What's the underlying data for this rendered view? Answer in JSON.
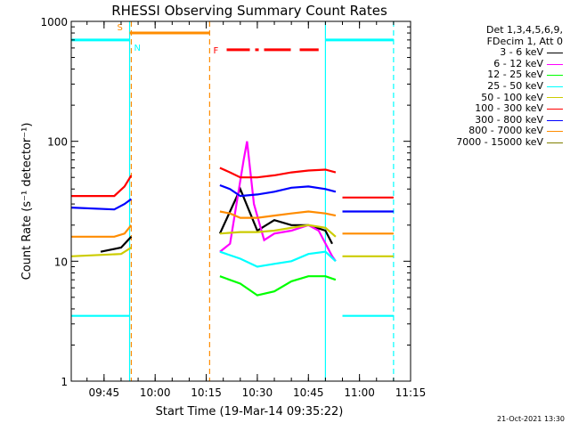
{
  "chart_data": {
    "type": "line",
    "title": "RHESSI Observing Summary Count Rates",
    "xlabel": "Start Time (19-Mar-14 09:35:22)",
    "ylabel": "Count Rate (s⁻¹ detector⁻¹)",
    "y_scale": "log",
    "ylim": [
      1,
      1000
    ],
    "xlim": [
      "09:35:22",
      "11:15"
    ],
    "x_ticks": [
      "09:45",
      "10:00",
      "10:15",
      "10:30",
      "10:45",
      "11:00",
      "11:15"
    ],
    "y_ticks": [
      "1",
      "10",
      "100",
      "1000"
    ],
    "legend_position": "top-right",
    "legend_header": [
      "Det 1,3,4,5,6,9,",
      "FDecim 1, Att 0"
    ],
    "series": [
      {
        "name": "3 - 6 keV",
        "color": "#000000",
        "segments": [
          {
            "x": [
              "09:44",
              "09:50",
              "09:53"
            ],
            "y": [
              12,
              13,
              16
            ]
          },
          {
            "x": [
              "10:19",
              "10:25",
              "10:30",
              "10:35",
              "10:40",
              "10:45",
              "10:50",
              "10:52"
            ],
            "y": [
              17,
              40,
              18,
              22,
              20,
              20,
              18,
              14
            ]
          }
        ]
      },
      {
        "name": "6 - 12 keV",
        "color": "#ff00ff",
        "segments": [
          {
            "x": [
              "10:19",
              "10:22",
              "10:26",
              "10:27",
              "10:29",
              "10:32",
              "10:35",
              "10:40",
              "10:45",
              "10:48",
              "10:52",
              "10:53"
            ],
            "y": [
              12,
              14,
              70,
              100,
              30,
              15,
              17,
              18,
              20,
              18,
              11,
              10
            ]
          }
        ]
      },
      {
        "name": "12 - 25 keV",
        "color": "#00ff00",
        "segments": [
          {
            "x": [
              "10:19",
              "10:25",
              "10:30",
              "10:35",
              "10:40",
              "10:45",
              "10:50",
              "10:53"
            ],
            "y": [
              7.5,
              6.5,
              5.2,
              5.6,
              6.8,
              7.5,
              7.5,
              7.0
            ]
          }
        ]
      },
      {
        "name": "25 - 50 keV",
        "color": "#00ffff",
        "segments": [
          {
            "x": [
              "09:35:22",
              "09:52:30"
            ],
            "y": [
              3.5,
              3.5
            ]
          },
          {
            "x": [
              "10:19",
              "10:25",
              "10:30",
              "10:35",
              "10:40",
              "10:45",
              "10:50",
              "10:53"
            ],
            "y": [
              12,
              10.5,
              9,
              9.5,
              10,
              11.5,
              12,
              10
            ]
          },
          {
            "x": [
              "10:55",
              "11:10"
            ],
            "y": [
              3.5,
              3.5
            ]
          }
        ]
      },
      {
        "name": "50 - 100 keV",
        "color": "#cccc00",
        "segments": [
          {
            "x": [
              "09:35:22",
              "09:50",
              "09:53"
            ],
            "y": [
              11,
              11.5,
              13
            ]
          },
          {
            "x": [
              "10:19",
              "10:25",
              "10:30",
              "10:35",
              "10:40",
              "10:45",
              "10:50",
              "10:53"
            ],
            "y": [
              17,
              17.5,
              17.5,
              18,
              19,
              20,
              19,
              16
            ]
          },
          {
            "x": [
              "10:55",
              "11:10"
            ],
            "y": [
              11,
              11
            ]
          }
        ]
      },
      {
        "name": "100 - 300 keV",
        "color": "#ff0000",
        "segments": [
          {
            "x": [
              "09:35:22",
              "09:48",
              "09:51",
              "09:53"
            ],
            "y": [
              35,
              35,
              42,
              52
            ]
          },
          {
            "x": [
              "10:19",
              "10:22",
              "10:25",
              "10:30",
              "10:35",
              "10:40",
              "10:45",
              "10:50",
              "10:53"
            ],
            "y": [
              60,
              55,
              50,
              50,
              52,
              55,
              57,
              58,
              55
            ]
          },
          {
            "x": [
              "10:55",
              "11:10"
            ],
            "y": [
              34,
              34
            ]
          }
        ]
      },
      {
        "name": "300 - 800 keV",
        "color": "#0000ff",
        "segments": [
          {
            "x": [
              "09:35:22",
              "09:48",
              "09:51",
              "09:53"
            ],
            "y": [
              28,
              27,
              30,
              33
            ]
          },
          {
            "x": [
              "10:19",
              "10:22",
              "10:25",
              "10:30",
              "10:35",
              "10:40",
              "10:45",
              "10:50",
              "10:53"
            ],
            "y": [
              43,
              40,
              35,
              36,
              38,
              41,
              42,
              40,
              38
            ]
          },
          {
            "x": [
              "10:55",
              "11:10"
            ],
            "y": [
              26,
              26
            ]
          }
        ]
      },
      {
        "name": "800 - 7000 keV",
        "color": "#ff8c00",
        "segments": [
          {
            "x": [
              "09:35:22",
              "09:48",
              "09:51",
              "09:53"
            ],
            "y": [
              16,
              16,
              17,
              20
            ]
          },
          {
            "x": [
              "10:19",
              "10:22",
              "10:25",
              "10:30",
              "10:35",
              "10:40",
              "10:45",
              "10:50",
              "10:53"
            ],
            "y": [
              26,
              25,
              23,
              23,
              24,
              25,
              26,
              25,
              24
            ]
          },
          {
            "x": [
              "10:55",
              "11:10"
            ],
            "y": [
              17,
              17
            ]
          }
        ]
      },
      {
        "name": "7000 - 15000 keV",
        "color": "#808000",
        "segments": []
      }
    ],
    "flags": [
      {
        "label": "S",
        "color": "#ff8c00",
        "y": 800,
        "x": [
          "09:52:30",
          "10:16"
        ]
      },
      {
        "label": "N",
        "color": "#00ffff",
        "y": 700,
        "x": [
          "09:35:22",
          "09:52:30"
        ]
      },
      {
        "label": "",
        "color": "#00ffff",
        "y": 700,
        "x": [
          "10:50",
          "11:10"
        ]
      },
      {
        "label": "F",
        "color": "#ff0000",
        "y": 580,
        "x": [
          "10:21",
          "10:48"
        ]
      }
    ],
    "vertical_markers": [
      {
        "x": "09:52:30",
        "color": "#00ffff",
        "style": "solid"
      },
      {
        "x": "09:53",
        "color": "#ff8c00",
        "style": "dashed"
      },
      {
        "x": "10:16",
        "color": "#ff8c00",
        "style": "dashed"
      },
      {
        "x": "10:50",
        "color": "#00ffff",
        "style": "solid"
      },
      {
        "x": "11:10",
        "color": "#00ffff",
        "style": "dashed"
      }
    ]
  },
  "footer": {
    "date": "21-Oct-2021 13:30"
  }
}
